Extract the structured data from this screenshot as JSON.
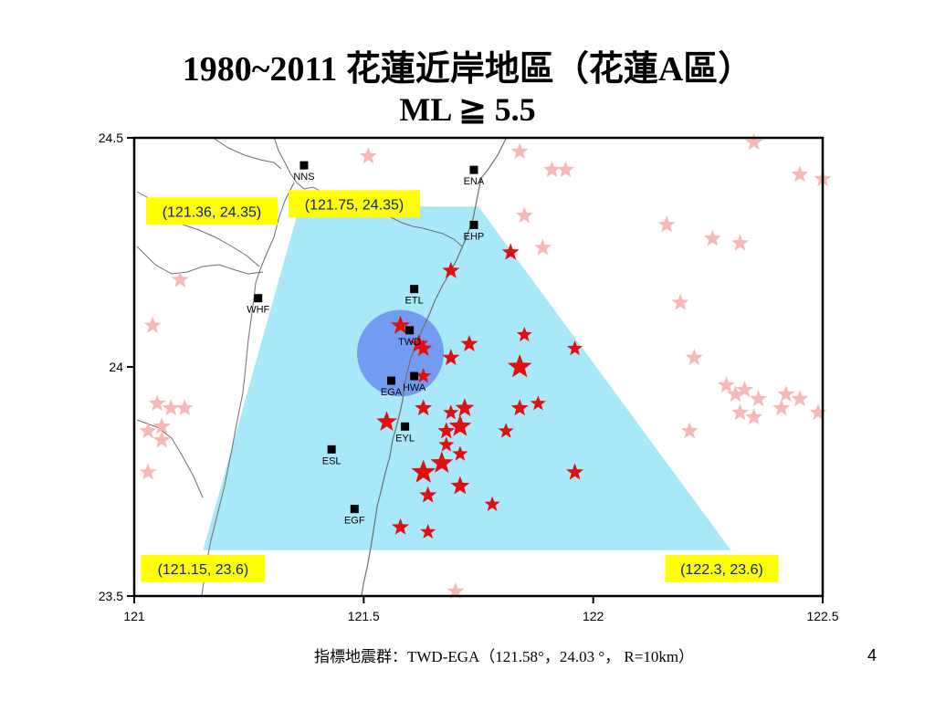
{
  "title": {
    "line1": "1980~2011 花蓮近岸地區（花蓮A區）",
    "line2": "ML ≧ 5.5"
  },
  "map": {
    "x_ticks": [
      "121",
      "121.5",
      "122",
      "122.5"
    ],
    "y_ticks": [
      "24.5",
      "24",
      "23.5"
    ],
    "x_range": [
      121,
      122.5
    ],
    "y_range": [
      23.5,
      24.5
    ],
    "region_color": "#a8e8f8",
    "circle_color": "#6f95f0",
    "label_box_color": "#ffff00",
    "label_text_color": "#0a1f8f",
    "star_color": "#e01010",
    "faded_star_color": "#f8b8b8",
    "coastline_color": "#6e6e6e",
    "region_corners": [
      {
        "lon": 121.36,
        "lat": 24.35,
        "label": "(121.36, 24.35)"
      },
      {
        "lon": 121.75,
        "lat": 24.35,
        "label": "(121.75, 24.35)"
      },
      {
        "lon": 122.3,
        "lat": 23.6,
        "label": "(122.3, 23.6)"
      },
      {
        "lon": 121.15,
        "lat": 23.6,
        "label": "(121.15, 23.6)"
      }
    ],
    "indicator_cluster": {
      "lon": 121.58,
      "lat": 24.03,
      "radius_km": 10
    },
    "stations": [
      {
        "code": "NNS",
        "lon": 121.37,
        "lat": 24.44
      },
      {
        "code": "ENA",
        "lon": 121.74,
        "lat": 24.43
      },
      {
        "code": "EHP",
        "lon": 121.74,
        "lat": 24.31
      },
      {
        "code": "ETL",
        "lon": 121.61,
        "lat": 24.17
      },
      {
        "code": "WHF",
        "lon": 121.27,
        "lat": 24.15
      },
      {
        "code": "TWD",
        "lon": 121.6,
        "lat": 24.08
      },
      {
        "code": "EGA",
        "lon": 121.56,
        "lat": 23.97
      },
      {
        "code": "HWA",
        "lon": 121.61,
        "lat": 23.98
      },
      {
        "code": "EYL",
        "lon": 121.59,
        "lat": 23.87
      },
      {
        "code": "ESL",
        "lon": 121.43,
        "lat": 23.82
      },
      {
        "code": "EGF",
        "lon": 121.48,
        "lat": 23.69
      }
    ],
    "events": [
      {
        "lon": 121.82,
        "lat": 24.25,
        "size": 10
      },
      {
        "lon": 121.69,
        "lat": 24.21,
        "size": 10
      },
      {
        "lon": 121.58,
        "lat": 24.09,
        "size": 11
      },
      {
        "lon": 121.62,
        "lat": 24.05,
        "size": 11
      },
      {
        "lon": 121.63,
        "lat": 24.04,
        "size": 10
      },
      {
        "lon": 121.73,
        "lat": 24.05,
        "size": 10
      },
      {
        "lon": 121.85,
        "lat": 24.07,
        "size": 9
      },
      {
        "lon": 121.69,
        "lat": 24.02,
        "size": 10
      },
      {
        "lon": 121.96,
        "lat": 24.04,
        "size": 9
      },
      {
        "lon": 121.84,
        "lat": 24.0,
        "size": 14
      },
      {
        "lon": 121.63,
        "lat": 23.98,
        "size": 9
      },
      {
        "lon": 121.63,
        "lat": 23.91,
        "size": 10
      },
      {
        "lon": 121.69,
        "lat": 23.9,
        "size": 9
      },
      {
        "lon": 121.72,
        "lat": 23.91,
        "size": 11
      },
      {
        "lon": 121.84,
        "lat": 23.91,
        "size": 10
      },
      {
        "lon": 121.88,
        "lat": 23.92,
        "size": 9
      },
      {
        "lon": 121.55,
        "lat": 23.88,
        "size": 12
      },
      {
        "lon": 121.71,
        "lat": 23.87,
        "size": 13
      },
      {
        "lon": 121.68,
        "lat": 23.86,
        "size": 10
      },
      {
        "lon": 121.81,
        "lat": 23.86,
        "size": 9
      },
      {
        "lon": 121.68,
        "lat": 23.83,
        "size": 9
      },
      {
        "lon": 121.71,
        "lat": 23.81,
        "size": 9
      },
      {
        "lon": 121.67,
        "lat": 23.79,
        "size": 13
      },
      {
        "lon": 121.63,
        "lat": 23.77,
        "size": 14
      },
      {
        "lon": 121.71,
        "lat": 23.74,
        "size": 11
      },
      {
        "lon": 121.64,
        "lat": 23.72,
        "size": 10
      },
      {
        "lon": 121.96,
        "lat": 23.77,
        "size": 10
      },
      {
        "lon": 121.78,
        "lat": 23.7,
        "size": 9
      },
      {
        "lon": 121.58,
        "lat": 23.65,
        "size": 10
      },
      {
        "lon": 121.64,
        "lat": 23.64,
        "size": 9
      }
    ],
    "outside_events": [
      {
        "lon": 121.51,
        "lat": 24.46
      },
      {
        "lon": 121.84,
        "lat": 24.47
      },
      {
        "lon": 121.91,
        "lat": 24.43
      },
      {
        "lon": 121.94,
        "lat": 24.43
      },
      {
        "lon": 122.35,
        "lat": 24.49
      },
      {
        "lon": 122.5,
        "lat": 24.41
      },
      {
        "lon": 122.45,
        "lat": 24.42
      },
      {
        "lon": 121.85,
        "lat": 24.33
      },
      {
        "lon": 122.16,
        "lat": 24.31
      },
      {
        "lon": 122.26,
        "lat": 24.28
      },
      {
        "lon": 122.32,
        "lat": 24.27
      },
      {
        "lon": 121.89,
        "lat": 24.26
      },
      {
        "lon": 122.19,
        "lat": 24.14
      },
      {
        "lon": 121.04,
        "lat": 24.09
      },
      {
        "lon": 121.1,
        "lat": 24.19
      },
      {
        "lon": 122.22,
        "lat": 24.02
      },
      {
        "lon": 122.29,
        "lat": 23.96
      },
      {
        "lon": 122.33,
        "lat": 23.95
      },
      {
        "lon": 122.31,
        "lat": 23.94
      },
      {
        "lon": 122.36,
        "lat": 23.93
      },
      {
        "lon": 122.42,
        "lat": 23.94
      },
      {
        "lon": 122.45,
        "lat": 23.93
      },
      {
        "lon": 122.49,
        "lat": 23.9
      },
      {
        "lon": 122.41,
        "lat": 23.91
      },
      {
        "lon": 122.32,
        "lat": 23.9
      },
      {
        "lon": 122.35,
        "lat": 23.89
      },
      {
        "lon": 122.21,
        "lat": 23.86
      },
      {
        "lon": 121.05,
        "lat": 23.92
      },
      {
        "lon": 121.08,
        "lat": 23.91
      },
      {
        "lon": 121.11,
        "lat": 23.91
      },
      {
        "lon": 121.06,
        "lat": 23.87
      },
      {
        "lon": 121.03,
        "lat": 23.86
      },
      {
        "lon": 121.06,
        "lat": 23.84
      },
      {
        "lon": 121.03,
        "lat": 23.77
      },
      {
        "lon": 121.7,
        "lat": 23.51
      }
    ]
  },
  "footer": {
    "caption": "指標地震群：TWD-EGA（121.58°，24.03 °， R=10km）",
    "page_number": "4"
  }
}
